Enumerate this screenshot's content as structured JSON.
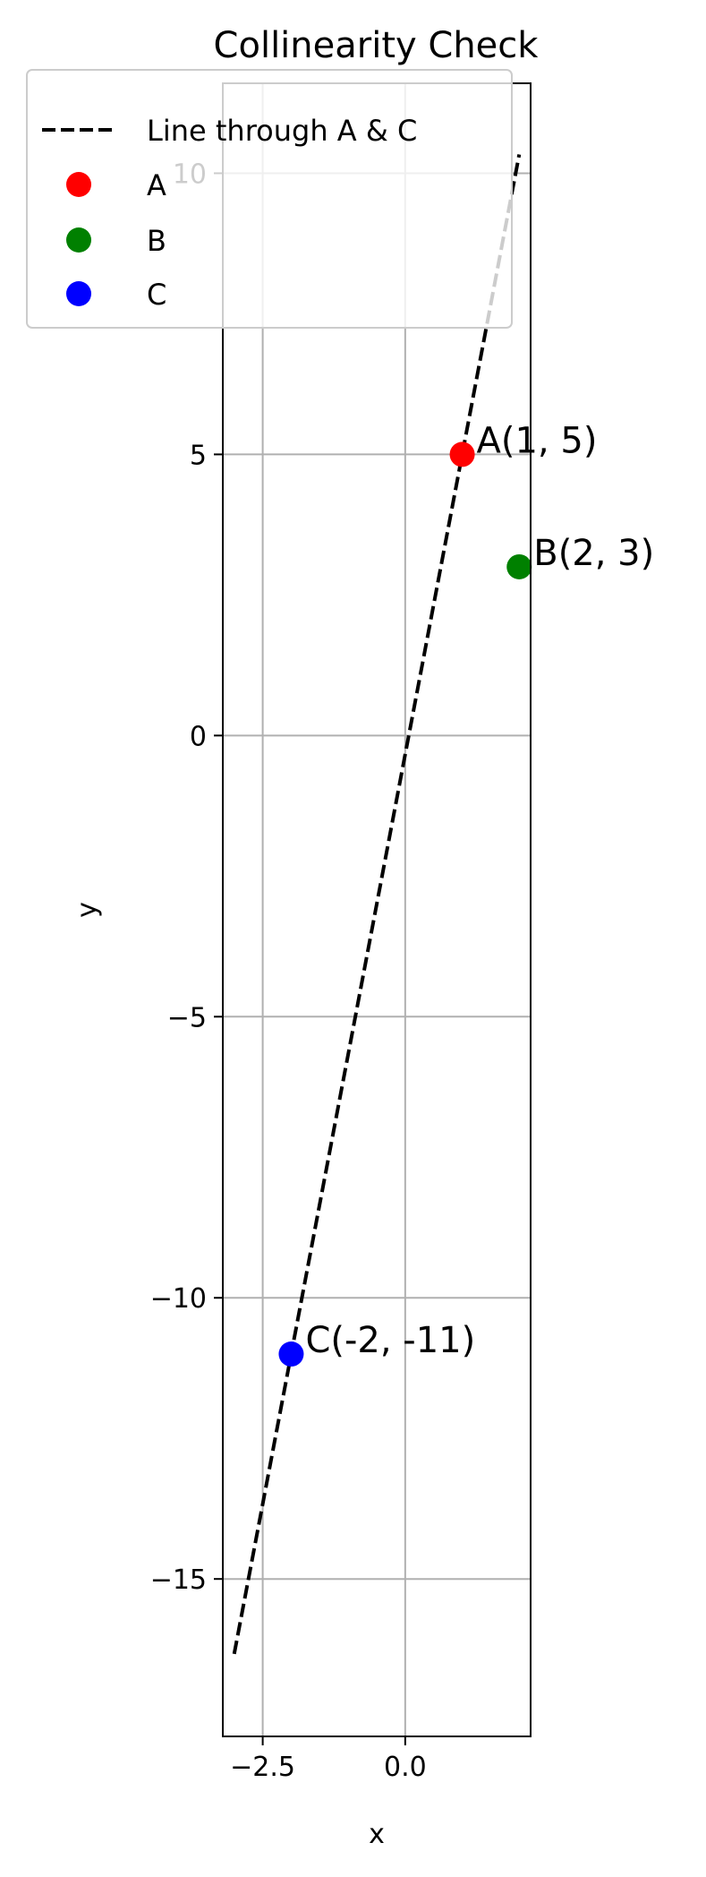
{
  "chart_data": {
    "type": "scatter",
    "title": "Collinearity Check",
    "xlabel": "x",
    "ylabel": "y",
    "xlim": [
      -3.2,
      2.2
    ],
    "ylim": [
      -17.8,
      11.6
    ],
    "grid": true,
    "legend_placement": "upper-left",
    "x_ticks": [
      {
        "value": -2.5,
        "label": "−2.5"
      },
      {
        "value": 0.0,
        "label": "0.0"
      }
    ],
    "y_ticks": [
      {
        "value": 10,
        "label": "10"
      },
      {
        "value": 5,
        "label": "5"
      },
      {
        "value": 0,
        "label": "0"
      },
      {
        "value": -5,
        "label": "−5"
      },
      {
        "value": -10,
        "label": "−10"
      },
      {
        "value": -15,
        "label": "−15"
      }
    ],
    "line": {
      "name": "Line through A & C",
      "color": "#000000",
      "style": "dashed",
      "x": [
        -3,
        2
      ],
      "y": [
        -16.333,
        10.333
      ]
    },
    "points": [
      {
        "name": "A",
        "x": 1,
        "y": 5,
        "label": "A(1, 5)",
        "color": "#ff0000"
      },
      {
        "name": "B",
        "x": 2,
        "y": 3,
        "label": "B(2, 3)",
        "color": "#008000"
      },
      {
        "name": "C",
        "x": -2,
        "y": -11,
        "label": "C(-2, -11)",
        "color": "#0000ff"
      }
    ]
  }
}
